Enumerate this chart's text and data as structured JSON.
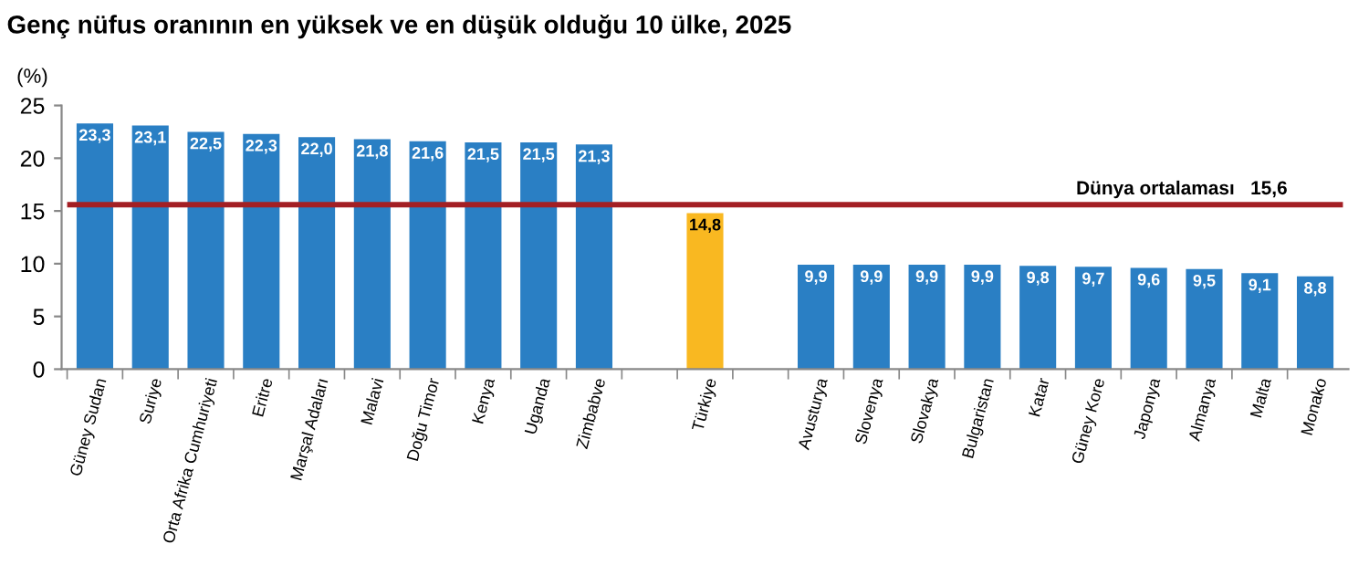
{
  "chart_data": {
    "type": "bar",
    "title": "Genç nüfus oranının en yüksek ve en düşük olduğu 10 ülke, 2025",
    "ylabel": "(%)",
    "categories": [
      "Güney Sudan",
      "Suriye",
      "Orta Afrika Cumhuriyeti",
      "Eritre",
      "Marşal Adaları",
      "Malavi",
      "Doğu Timor",
      "Kenya",
      "Uganda",
      "Zimbabve",
      null,
      "Türkiye",
      null,
      "Avusturya",
      "Slovenya",
      "Slovakya",
      "Bulgaristan",
      "Katar",
      "Güney Kore",
      "Japonya",
      "Almanya",
      "Malta",
      "Monako"
    ],
    "values": [
      23.3,
      23.1,
      22.5,
      22.3,
      22.0,
      21.8,
      21.6,
      21.5,
      21.5,
      21.3,
      null,
      14.8,
      null,
      9.9,
      9.9,
      9.9,
      9.9,
      9.8,
      9.7,
      9.6,
      9.5,
      9.1,
      8.8
    ],
    "value_labels": [
      "23,3",
      "23,1",
      "22,5",
      "22,3",
      "22,0",
      "21,8",
      "21,6",
      "21,5",
      "21,5",
      "21,3",
      null,
      "14,8",
      null,
      "9,9",
      "9,9",
      "9,9",
      "9,9",
      "9,8",
      "9,7",
      "9,6",
      "9,5",
      "9,1",
      "8,8"
    ],
    "colors": [
      "#2a7fc4",
      "#2a7fc4",
      "#2a7fc4",
      "#2a7fc4",
      "#2a7fc4",
      "#2a7fc4",
      "#2a7fc4",
      "#2a7fc4",
      "#2a7fc4",
      "#2a7fc4",
      "#2a7fc4",
      "#f9b821",
      "#2a7fc4",
      "#2a7fc4",
      "#2a7fc4",
      "#2a7fc4",
      "#2a7fc4",
      "#2a7fc4",
      "#2a7fc4",
      "#2a7fc4",
      "#2a7fc4",
      "#2a7fc4",
      "#2a7fc4"
    ],
    "ylim": [
      0,
      25
    ],
    "yticks": [
      0,
      5,
      10,
      15,
      20,
      25
    ],
    "ref_lines": [
      {
        "axis": "y",
        "value": 15.6,
        "label": "Dünya ortalaması   15,6",
        "color": "#a31f24",
        "line_style": "solid"
      }
    ],
    "grid": false,
    "legend": false
  }
}
